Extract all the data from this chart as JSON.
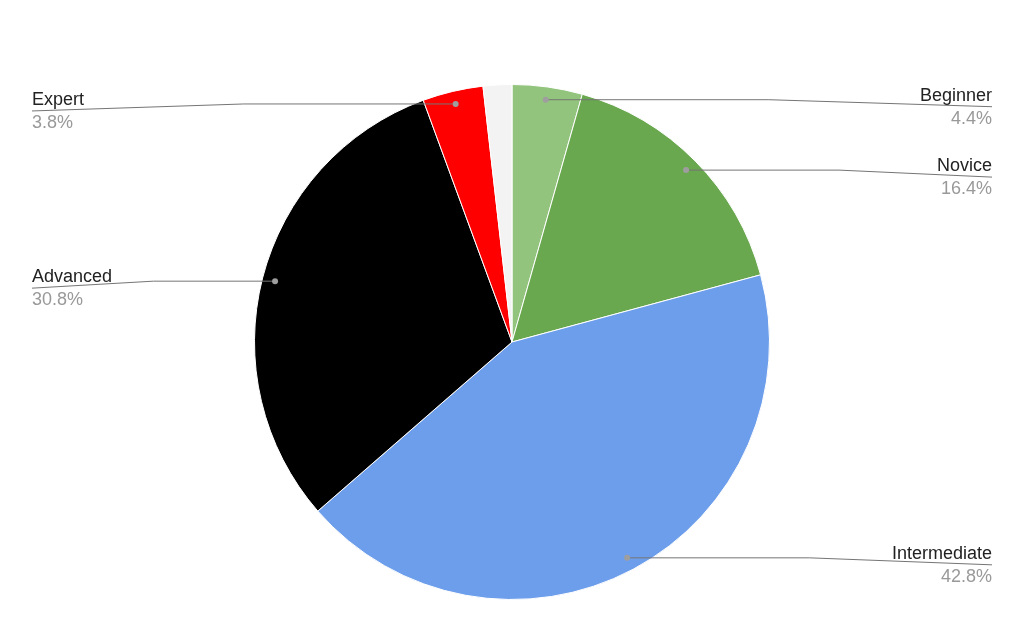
{
  "chart_data": {
    "type": "pie",
    "categories": [
      "Beginner",
      "Novice",
      "Intermediate",
      "Advanced",
      "Expert",
      null
    ],
    "values": [
      4.4,
      16.4,
      42.8,
      30.8,
      3.8,
      1.8
    ],
    "colors": [
      "#93c47d",
      "#6aa84f",
      "#6d9eeb",
      "#000000",
      "#ff0000",
      "#f3f3f3"
    ],
    "value_labels": [
      "4.4%",
      "16.4%",
      "42.8%",
      "30.8%",
      "3.8%",
      null
    ],
    "legend": false
  }
}
